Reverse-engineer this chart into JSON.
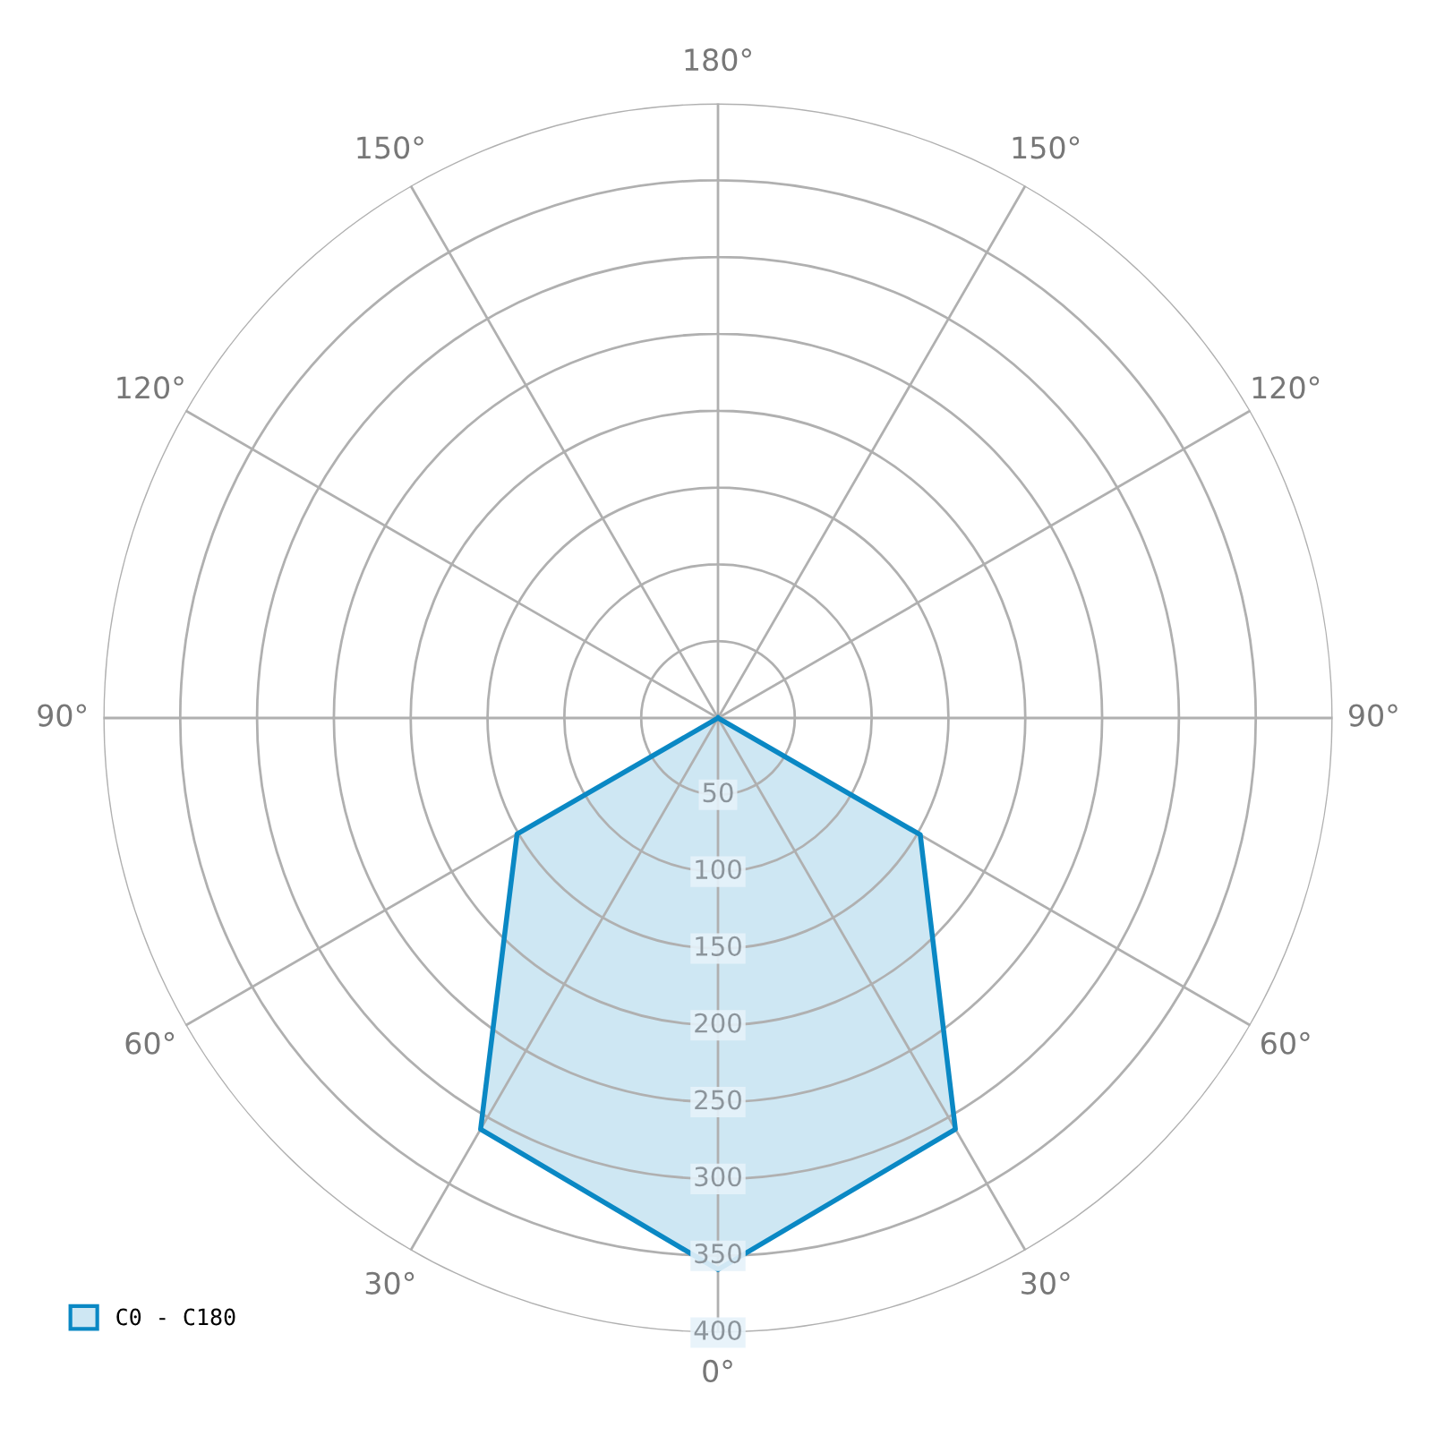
{
  "chart_data": {
    "type": "radar",
    "categories": [
      "180°",
      "150°",
      "120°",
      "90°",
      "60°",
      "30°",
      "0°",
      "30°",
      "60°",
      "90°",
      "120°",
      "150°"
    ],
    "series": [
      {
        "name": "C0 - C180",
        "color": "#0a88c4",
        "values": [
          0,
          0,
          0,
          0,
          152,
          309,
          359,
          309,
          151,
          0,
          0,
          0
        ]
      }
    ],
    "ylim": [
      0,
      400
    ],
    "yticks": [
      50,
      100,
      150,
      200,
      250,
      300,
      350,
      400
    ],
    "grid": true,
    "legend": "bottom left"
  }
}
